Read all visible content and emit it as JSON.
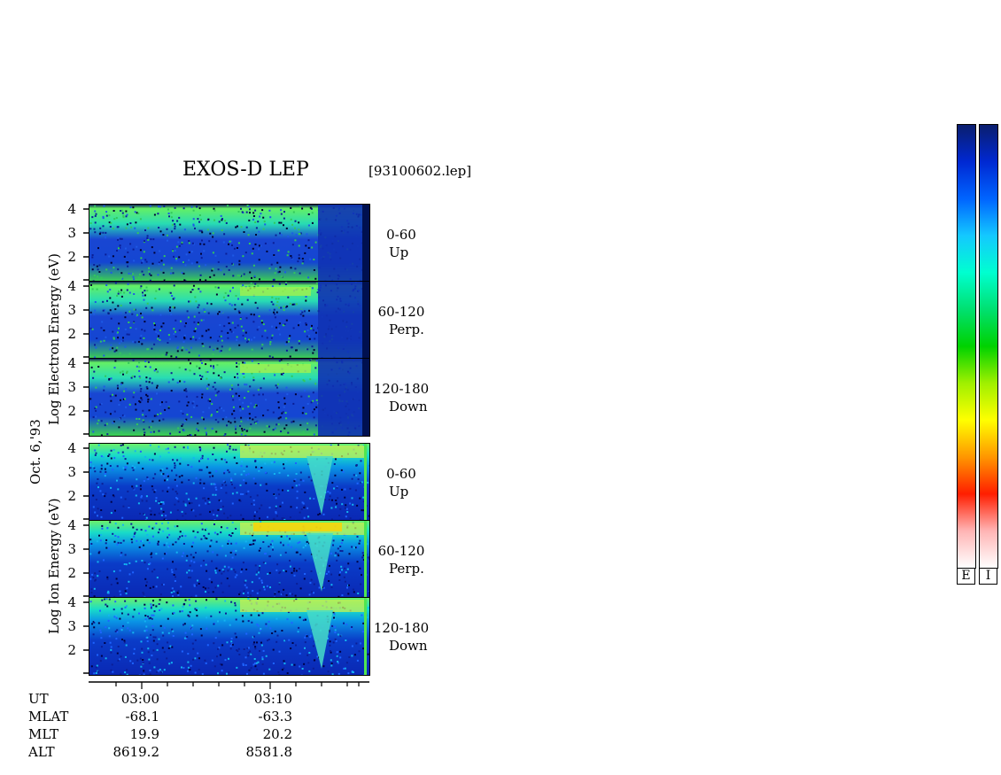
{
  "header": {
    "title": "EXOS-D LEP",
    "file": "[93100602.lep]"
  },
  "y_labels": {
    "electron": "Log  Electron  Energy (eV)",
    "ion": "Log  Ion  Energy (eV)",
    "date": "Oct. 6,'93"
  },
  "colorbar": {
    "labels": [
      "E",
      "I"
    ],
    "stops": [
      "#0a1e6e",
      "#0028d2",
      "#0064ff",
      "#14c8ff",
      "#00ffd0",
      "#00e070",
      "#00d200",
      "#a0f000",
      "#ffff00",
      "#ff9600",
      "#ff1e00",
      "#ffb4b4",
      "#ffffff"
    ]
  },
  "panels": [
    {
      "id": "e-up",
      "species": "Electron",
      "pitch": "0-60",
      "dir": "Up"
    },
    {
      "id": "e-perp",
      "species": "Electron",
      "pitch": "60-120",
      "dir": "Perp."
    },
    {
      "id": "e-down",
      "species": "Electron",
      "pitch": "120-180",
      "dir": "Down"
    },
    {
      "id": "i-up",
      "species": "Ion",
      "pitch": "0-60",
      "dir": "Up"
    },
    {
      "id": "i-perp",
      "species": "Ion",
      "pitch": "60-120",
      "dir": "Perp."
    },
    {
      "id": "i-down",
      "species": "Ion",
      "pitch": "120-180",
      "dir": "Down"
    }
  ],
  "ephemeris": {
    "row_labels": [
      "UT",
      "MLAT",
      "MLT",
      "ALT"
    ],
    "columns": [
      {
        "UT": "03:00",
        "MLAT": "-68.1",
        "MLT": "19.9",
        "ALT": "8619.2"
      },
      {
        "UT": "03:10",
        "MLAT": "-63.3",
        "MLT": "20.2",
        "ALT": "8581.8"
      }
    ]
  },
  "chart_data": {
    "type": "heatmap",
    "title": "EXOS-D LEP",
    "ylabel": "Log Energy (eV)",
    "y_ticks": [
      "2",
      "3",
      "4"
    ],
    "x_ticks": [
      "03:00",
      "03:10"
    ],
    "series": [
      {
        "name": "Electron 0-60 Up"
      },
      {
        "name": "Electron 60-120 Perp."
      },
      {
        "name": "Electron 120-180 Down"
      },
      {
        "name": "Ion 0-60 Up"
      },
      {
        "name": "Ion 60-120 Perp."
      },
      {
        "name": "Ion 120-180 Down"
      }
    ]
  }
}
